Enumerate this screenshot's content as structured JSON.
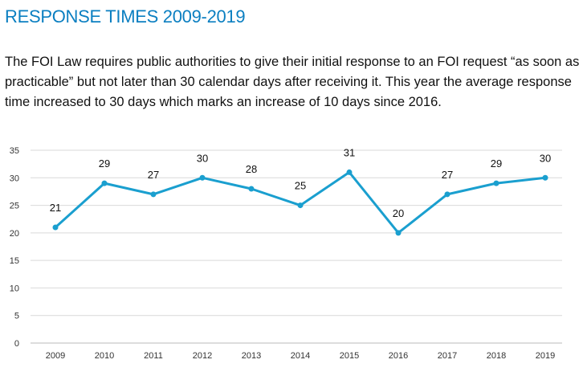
{
  "heading": "RESPONSE TIMES 2009-2019",
  "paragraph": "The FOI Law requires public authorities to give their initial response to an FOI request “as soon as practicable” but not later than 30 calendar days after receiving it. This year the average response time increased to 30 days which marks an increase of 10 days since 2016.",
  "chart_data": {
    "type": "line",
    "title": "",
    "xlabel": "",
    "ylabel": "",
    "categories": [
      "2009",
      "2010",
      "2011",
      "2012",
      "2013",
      "2014",
      "2015",
      "2016",
      "2017",
      "2018",
      "2019"
    ],
    "values": [
      21,
      29,
      27,
      30,
      28,
      25,
      31,
      20,
      27,
      29,
      30
    ],
    "ylim": [
      0,
      35
    ],
    "yticks": [
      0,
      5,
      10,
      15,
      20,
      25,
      30,
      35
    ],
    "grid": true,
    "data_labels": true,
    "markers": true,
    "line_color": "#1a9fcf"
  }
}
